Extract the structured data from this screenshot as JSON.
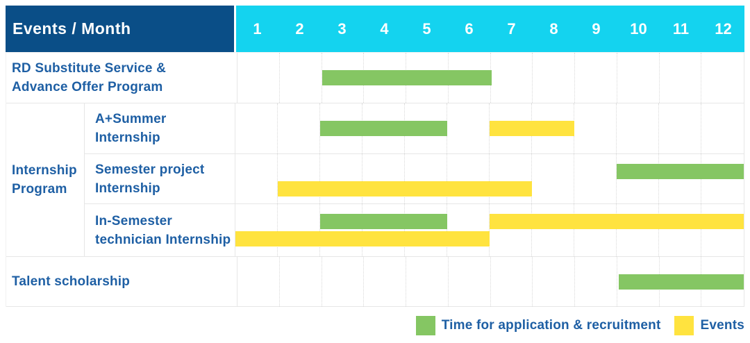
{
  "header": {
    "title": "Events / Month",
    "months": [
      "1",
      "2",
      "3",
      "4",
      "5",
      "6",
      "7",
      "8",
      "9",
      "10",
      "11",
      "12"
    ]
  },
  "rows": [
    {
      "kind": "single",
      "series_index": 0,
      "label": "RD Substitute Service &\nAdvance Offer Program"
    },
    {
      "kind": "group",
      "label": "Internship\nProgram",
      "children": [
        {
          "series_index": 1,
          "label": "A+Summer\nInternship"
        },
        {
          "series_index": 2,
          "label": "Semester project\nInternship"
        },
        {
          "series_index": 3,
          "label": "In-Semester\ntechnician Internship"
        }
      ]
    },
    {
      "kind": "single",
      "series_index": 4,
      "label": "Talent scholarship"
    }
  ],
  "chart_data": {
    "type": "bar",
    "variant": "gantt",
    "title": "Events / Month",
    "x_axis": {
      "label": "Month",
      "ticks": [
        1,
        2,
        3,
        4,
        5,
        6,
        7,
        8,
        9,
        10,
        11,
        12
      ],
      "range": [
        1,
        12
      ]
    },
    "legend": [
      {
        "key": "recruitment",
        "label": "Time for application & recruitment",
        "color": "#85C663"
      },
      {
        "key": "events",
        "label": "Events",
        "color": "#FFE33F"
      }
    ],
    "series": [
      {
        "row": "RD Substitute Service & Advance Offer Program",
        "group": null,
        "bars": [
          {
            "series_key": "recruitment",
            "start_month": 3,
            "end_month": 6,
            "lane": "mid"
          }
        ]
      },
      {
        "row": "A+Summer Internship",
        "group": "Internship Program",
        "bars": [
          {
            "series_key": "recruitment",
            "start_month": 3,
            "end_month": 5,
            "lane": "mid"
          },
          {
            "series_key": "events",
            "start_month": 7,
            "end_month": 8,
            "lane": "mid"
          }
        ]
      },
      {
        "row": "Semester project Internship",
        "group": "Internship Program",
        "bars": [
          {
            "series_key": "recruitment",
            "start_month": 10,
            "end_month": 12,
            "lane": "top"
          },
          {
            "series_key": "events",
            "start_month": 2,
            "end_month": 7,
            "lane": "bottom"
          }
        ]
      },
      {
        "row": "In-Semester technician Internship",
        "group": "Internship Program",
        "bars": [
          {
            "series_key": "recruitment",
            "start_month": 3,
            "end_month": 5,
            "lane": "top"
          },
          {
            "series_key": "events",
            "start_month": 7,
            "end_month": 12,
            "lane": "top"
          },
          {
            "series_key": "events",
            "start_month": 1,
            "end_month": 6,
            "lane": "bottom"
          }
        ]
      },
      {
        "row": "Talent scholarship",
        "group": null,
        "bars": [
          {
            "series_key": "recruitment",
            "start_month": 10,
            "end_month": 12,
            "lane": "mid"
          }
        ]
      }
    ]
  },
  "colors": {
    "header_bg": "#0A4E87",
    "month_header_bg": "#14D3EF",
    "white_text": "#FFFFFF",
    "label_text": "#1E5FA4",
    "grid_line": "#E6E6E6",
    "recruitment_green": "#85C663",
    "events_yellow": "#FFE33F"
  }
}
